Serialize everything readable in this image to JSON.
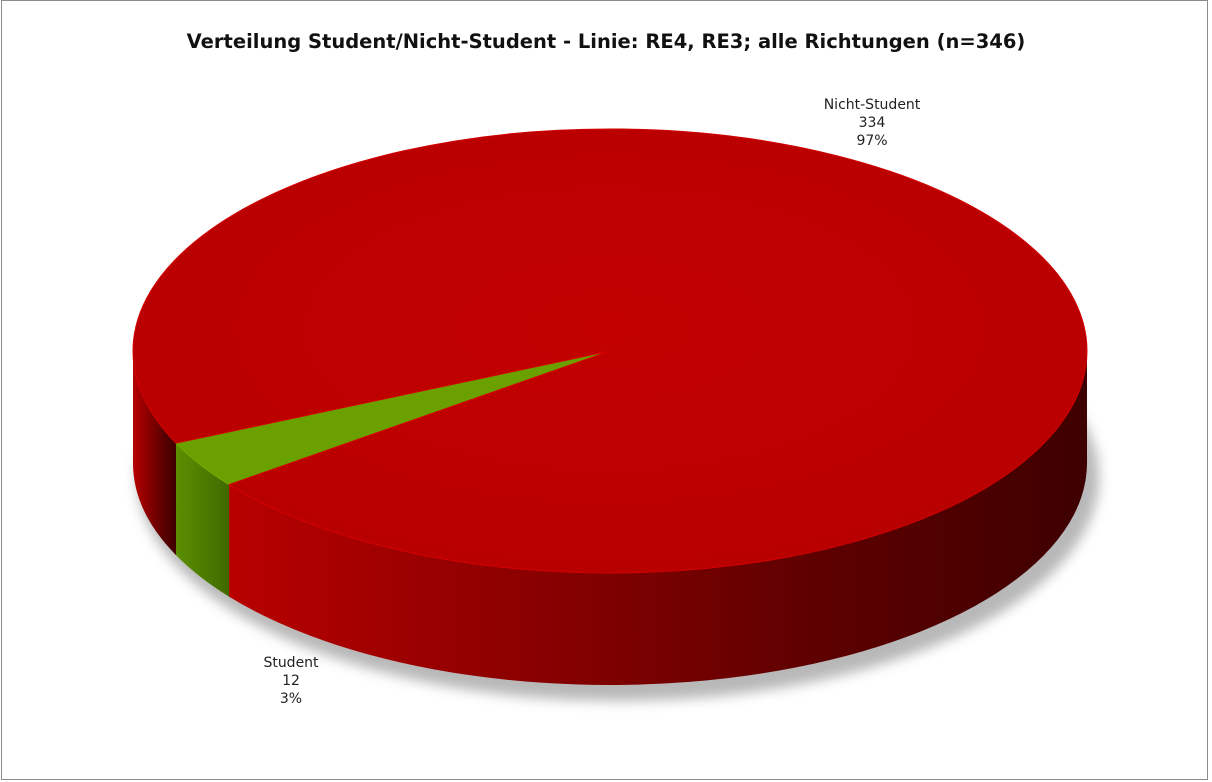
{
  "chart_data": {
    "type": "pie",
    "title": "Verteilung Student/Nicht-Student - Linie: RE4, RE3; alle Richtungen (n=346)",
    "slices": [
      {
        "label": "Nicht-Student",
        "value": 334,
        "percent": "97%",
        "value_label": "334",
        "color": "#bf0000"
      },
      {
        "label": "Student",
        "value": 12,
        "percent": "3%",
        "value_label": "12",
        "color": "#6aa000"
      }
    ],
    "legend": "none",
    "style": "3d"
  }
}
